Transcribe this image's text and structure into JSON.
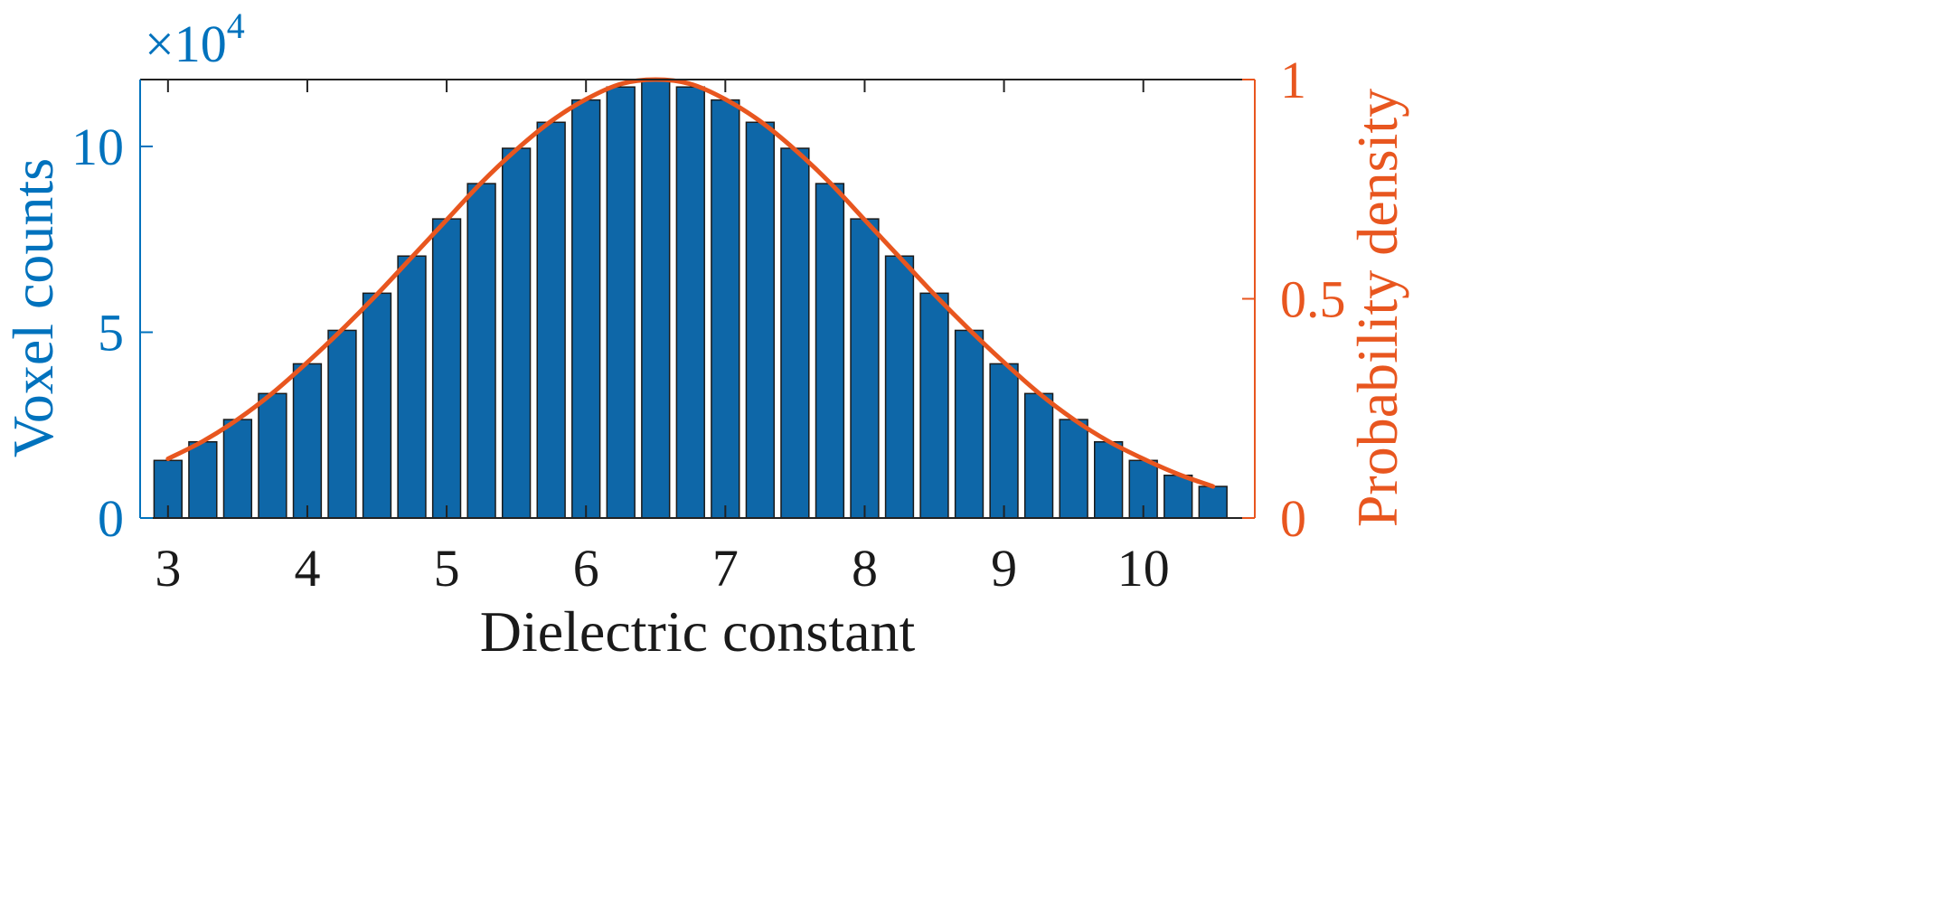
{
  "chart_data": {
    "type": "bar",
    "xlabel": "Dielectric constant",
    "ylabel": "Voxel counts",
    "y2label": "Probability density",
    "y_multiplier": {
      "base": "×10",
      "exponent": "4"
    },
    "xlim": [
      2.8,
      10.8
    ],
    "ylim": [
      0,
      11.8
    ],
    "y2lim": [
      0,
      1
    ],
    "xticks": [
      "3",
      "4",
      "5",
      "6",
      "7",
      "8",
      "9",
      "10"
    ],
    "yticks": [
      "0",
      "5",
      "10"
    ],
    "y2ticks": [
      "0",
      "0.5",
      "1"
    ],
    "grid": false,
    "bar_series": {
      "x": [
        3.0,
        3.25,
        3.5,
        3.75,
        4.0,
        4.25,
        4.5,
        4.75,
        5.0,
        5.25,
        5.5,
        5.75,
        6.0,
        6.25,
        6.5,
        6.75,
        7.0,
        7.25,
        7.5,
        7.75,
        8.0,
        8.25,
        8.5,
        8.75,
        9.0,
        9.25,
        9.5,
        9.75,
        10.0,
        10.25,
        10.5
      ],
      "values": [
        1.55,
        2.05,
        2.65,
        3.35,
        4.15,
        5.05,
        6.05,
        7.05,
        8.05,
        9.0,
        9.95,
        10.65,
        11.25,
        11.6,
        11.8,
        11.6,
        11.25,
        10.65,
        9.95,
        9.0,
        8.05,
        7.05,
        6.05,
        5.05,
        4.15,
        3.35,
        2.65,
        2.05,
        1.55,
        1.15,
        0.85
      ],
      "color": "#0E67A8"
    },
    "line_series": {
      "x": [
        3.0,
        3.25,
        3.5,
        3.75,
        4.0,
        4.25,
        4.5,
        4.75,
        5.0,
        5.25,
        5.5,
        5.75,
        6.0,
        6.25,
        6.5,
        6.75,
        7.0,
        7.25,
        7.5,
        7.75,
        8.0,
        8.25,
        8.5,
        8.75,
        9.0,
        9.25,
        9.5,
        9.75,
        10.0,
        10.25,
        10.5
      ],
      "values": [
        0.135,
        0.175,
        0.225,
        0.285,
        0.355,
        0.43,
        0.51,
        0.595,
        0.68,
        0.765,
        0.84,
        0.905,
        0.955,
        0.99,
        1.0,
        0.99,
        0.955,
        0.905,
        0.84,
        0.765,
        0.68,
        0.595,
        0.51,
        0.43,
        0.355,
        0.285,
        0.225,
        0.175,
        0.135,
        0.1,
        0.072
      ],
      "color": "#E8561F"
    },
    "colors": {
      "left_axis": "#0072BD",
      "right_axis": "#E8561F",
      "axis": "#222222"
    }
  }
}
